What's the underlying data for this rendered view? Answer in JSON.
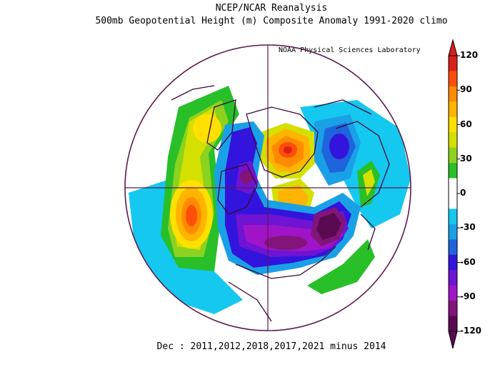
{
  "header": {
    "title": "NCEP/NCAR Reanalysis",
    "subtitle": "500mb Geopotential Height (m) Composite Anomaly 1991-2020 climo",
    "credit": "NOAA Physical Sciences Laboratory"
  },
  "footer": {
    "caption": "Dec : 2011,2012,2018,2017,2021 minus 2014"
  },
  "colorbar": {
    "levels": [
      {
        "label": "120",
        "value": 120
      },
      {
        "label": "90",
        "value": 90
      },
      {
        "label": "60",
        "value": 60
      },
      {
        "label": "30",
        "value": 30
      },
      {
        "label": "0",
        "value": 0
      },
      {
        "label": "-30",
        "value": -30
      },
      {
        "label": "-60",
        "value": -60
      },
      {
        "label": "-90",
        "value": -90
      },
      {
        "label": "-120",
        "value": -120
      }
    ],
    "colors_top_to_bottom": [
      "#d8201a",
      "#ff4d0a",
      "#ff8c00",
      "#ffb400",
      "#ffe000",
      "#d4e000",
      "#8cd21e",
      "#28bf28",
      "#ffffff",
      "#ffffff",
      "#14c8f0",
      "#1aa0e6",
      "#1e64dc",
      "#3214dc",
      "#6e14d2",
      "#a014c8",
      "#82147a",
      "#5a0a50"
    ]
  },
  "colors": {
    "outline": "#5a1a4e",
    "land": "#3a0838"
  }
}
